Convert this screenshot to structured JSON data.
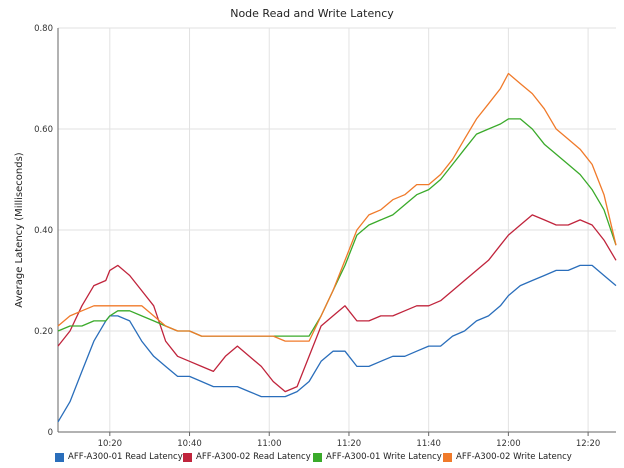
{
  "chart_data": {
    "type": "line",
    "title": "Node Read and Write Latency",
    "ylabel": "Average Latency (Milliseconds)",
    "xlabel": "",
    "ylim": [
      0,
      0.8
    ],
    "y_ticks": [
      "0",
      "0.20",
      "0.40",
      "0.60",
      "0.80"
    ],
    "xlim": [
      "10:07",
      "12:27"
    ],
    "x_ticks": [
      "10:20",
      "10:40",
      "11:00",
      "11:20",
      "11:40",
      "12:00",
      "12:20"
    ],
    "grid": true,
    "legend_position": "bottom",
    "x": [
      "10:07",
      "10:10",
      "10:13",
      "10:16",
      "10:19",
      "10:20",
      "10:22",
      "10:25",
      "10:28",
      "10:31",
      "10:34",
      "10:37",
      "10:40",
      "10:43",
      "10:46",
      "10:49",
      "10:52",
      "10:55",
      "10:58",
      "11:01",
      "11:04",
      "11:07",
      "11:10",
      "11:13",
      "11:16",
      "11:19",
      "11:22",
      "11:25",
      "11:28",
      "11:31",
      "11:34",
      "11:37",
      "11:40",
      "11:43",
      "11:46",
      "11:49",
      "11:52",
      "11:55",
      "11:58",
      "12:00",
      "12:03",
      "12:06",
      "12:09",
      "12:12",
      "12:15",
      "12:18",
      "12:21",
      "12:24",
      "12:27"
    ],
    "series": [
      {
        "name": "AFF-A300-01 Read Latency",
        "color": "#2a6ebb",
        "values": [
          0.02,
          0.06,
          0.12,
          0.18,
          0.22,
          0.23,
          0.23,
          0.22,
          0.18,
          0.15,
          0.13,
          0.11,
          0.11,
          0.1,
          0.09,
          0.09,
          0.09,
          0.08,
          0.07,
          0.07,
          0.07,
          0.08,
          0.1,
          0.14,
          0.16,
          0.16,
          0.13,
          0.13,
          0.14,
          0.15,
          0.15,
          0.16,
          0.17,
          0.17,
          0.19,
          0.2,
          0.22,
          0.23,
          0.25,
          0.27,
          0.29,
          0.3,
          0.31,
          0.32,
          0.32,
          0.33,
          0.33,
          0.31,
          0.29
        ]
      },
      {
        "name": "AFF-A300-02 Read Latency",
        "color": "#c0243c",
        "values": [
          0.17,
          0.2,
          0.25,
          0.29,
          0.3,
          0.32,
          0.33,
          0.31,
          0.28,
          0.25,
          0.18,
          0.15,
          0.14,
          0.13,
          0.12,
          0.15,
          0.17,
          0.15,
          0.13,
          0.1,
          0.08,
          0.09,
          0.15,
          0.21,
          0.23,
          0.25,
          0.22,
          0.22,
          0.23,
          0.23,
          0.24,
          0.25,
          0.25,
          0.26,
          0.28,
          0.3,
          0.32,
          0.34,
          0.37,
          0.39,
          0.41,
          0.43,
          0.42,
          0.41,
          0.41,
          0.42,
          0.41,
          0.38,
          0.34
        ]
      },
      {
        "name": "AFF-A300-01 Write Latency",
        "color": "#3aaa2a",
        "values": [
          0.2,
          0.21,
          0.21,
          0.22,
          0.22,
          0.23,
          0.24,
          0.24,
          0.23,
          0.22,
          0.21,
          0.2,
          0.2,
          0.19,
          0.19,
          0.19,
          0.19,
          0.19,
          0.19,
          0.19,
          0.19,
          0.19,
          0.19,
          0.23,
          0.28,
          0.33,
          0.39,
          0.41,
          0.42,
          0.43,
          0.45,
          0.47,
          0.48,
          0.5,
          0.53,
          0.56,
          0.59,
          0.6,
          0.61,
          0.62,
          0.62,
          0.6,
          0.57,
          0.55,
          0.53,
          0.51,
          0.48,
          0.44,
          0.37
        ]
      },
      {
        "name": "AFF-A300-02 Write Latency",
        "color": "#f07a2a",
        "values": [
          0.21,
          0.23,
          0.24,
          0.25,
          0.25,
          0.25,
          0.25,
          0.25,
          0.25,
          0.23,
          0.21,
          0.2,
          0.2,
          0.19,
          0.19,
          0.19,
          0.19,
          0.19,
          0.19,
          0.19,
          0.18,
          0.18,
          0.18,
          0.23,
          0.28,
          0.34,
          0.4,
          0.43,
          0.44,
          0.46,
          0.47,
          0.49,
          0.49,
          0.51,
          0.54,
          0.58,
          0.62,
          0.65,
          0.68,
          0.71,
          0.69,
          0.67,
          0.64,
          0.6,
          0.58,
          0.56,
          0.53,
          0.47,
          0.37
        ]
      }
    ]
  }
}
